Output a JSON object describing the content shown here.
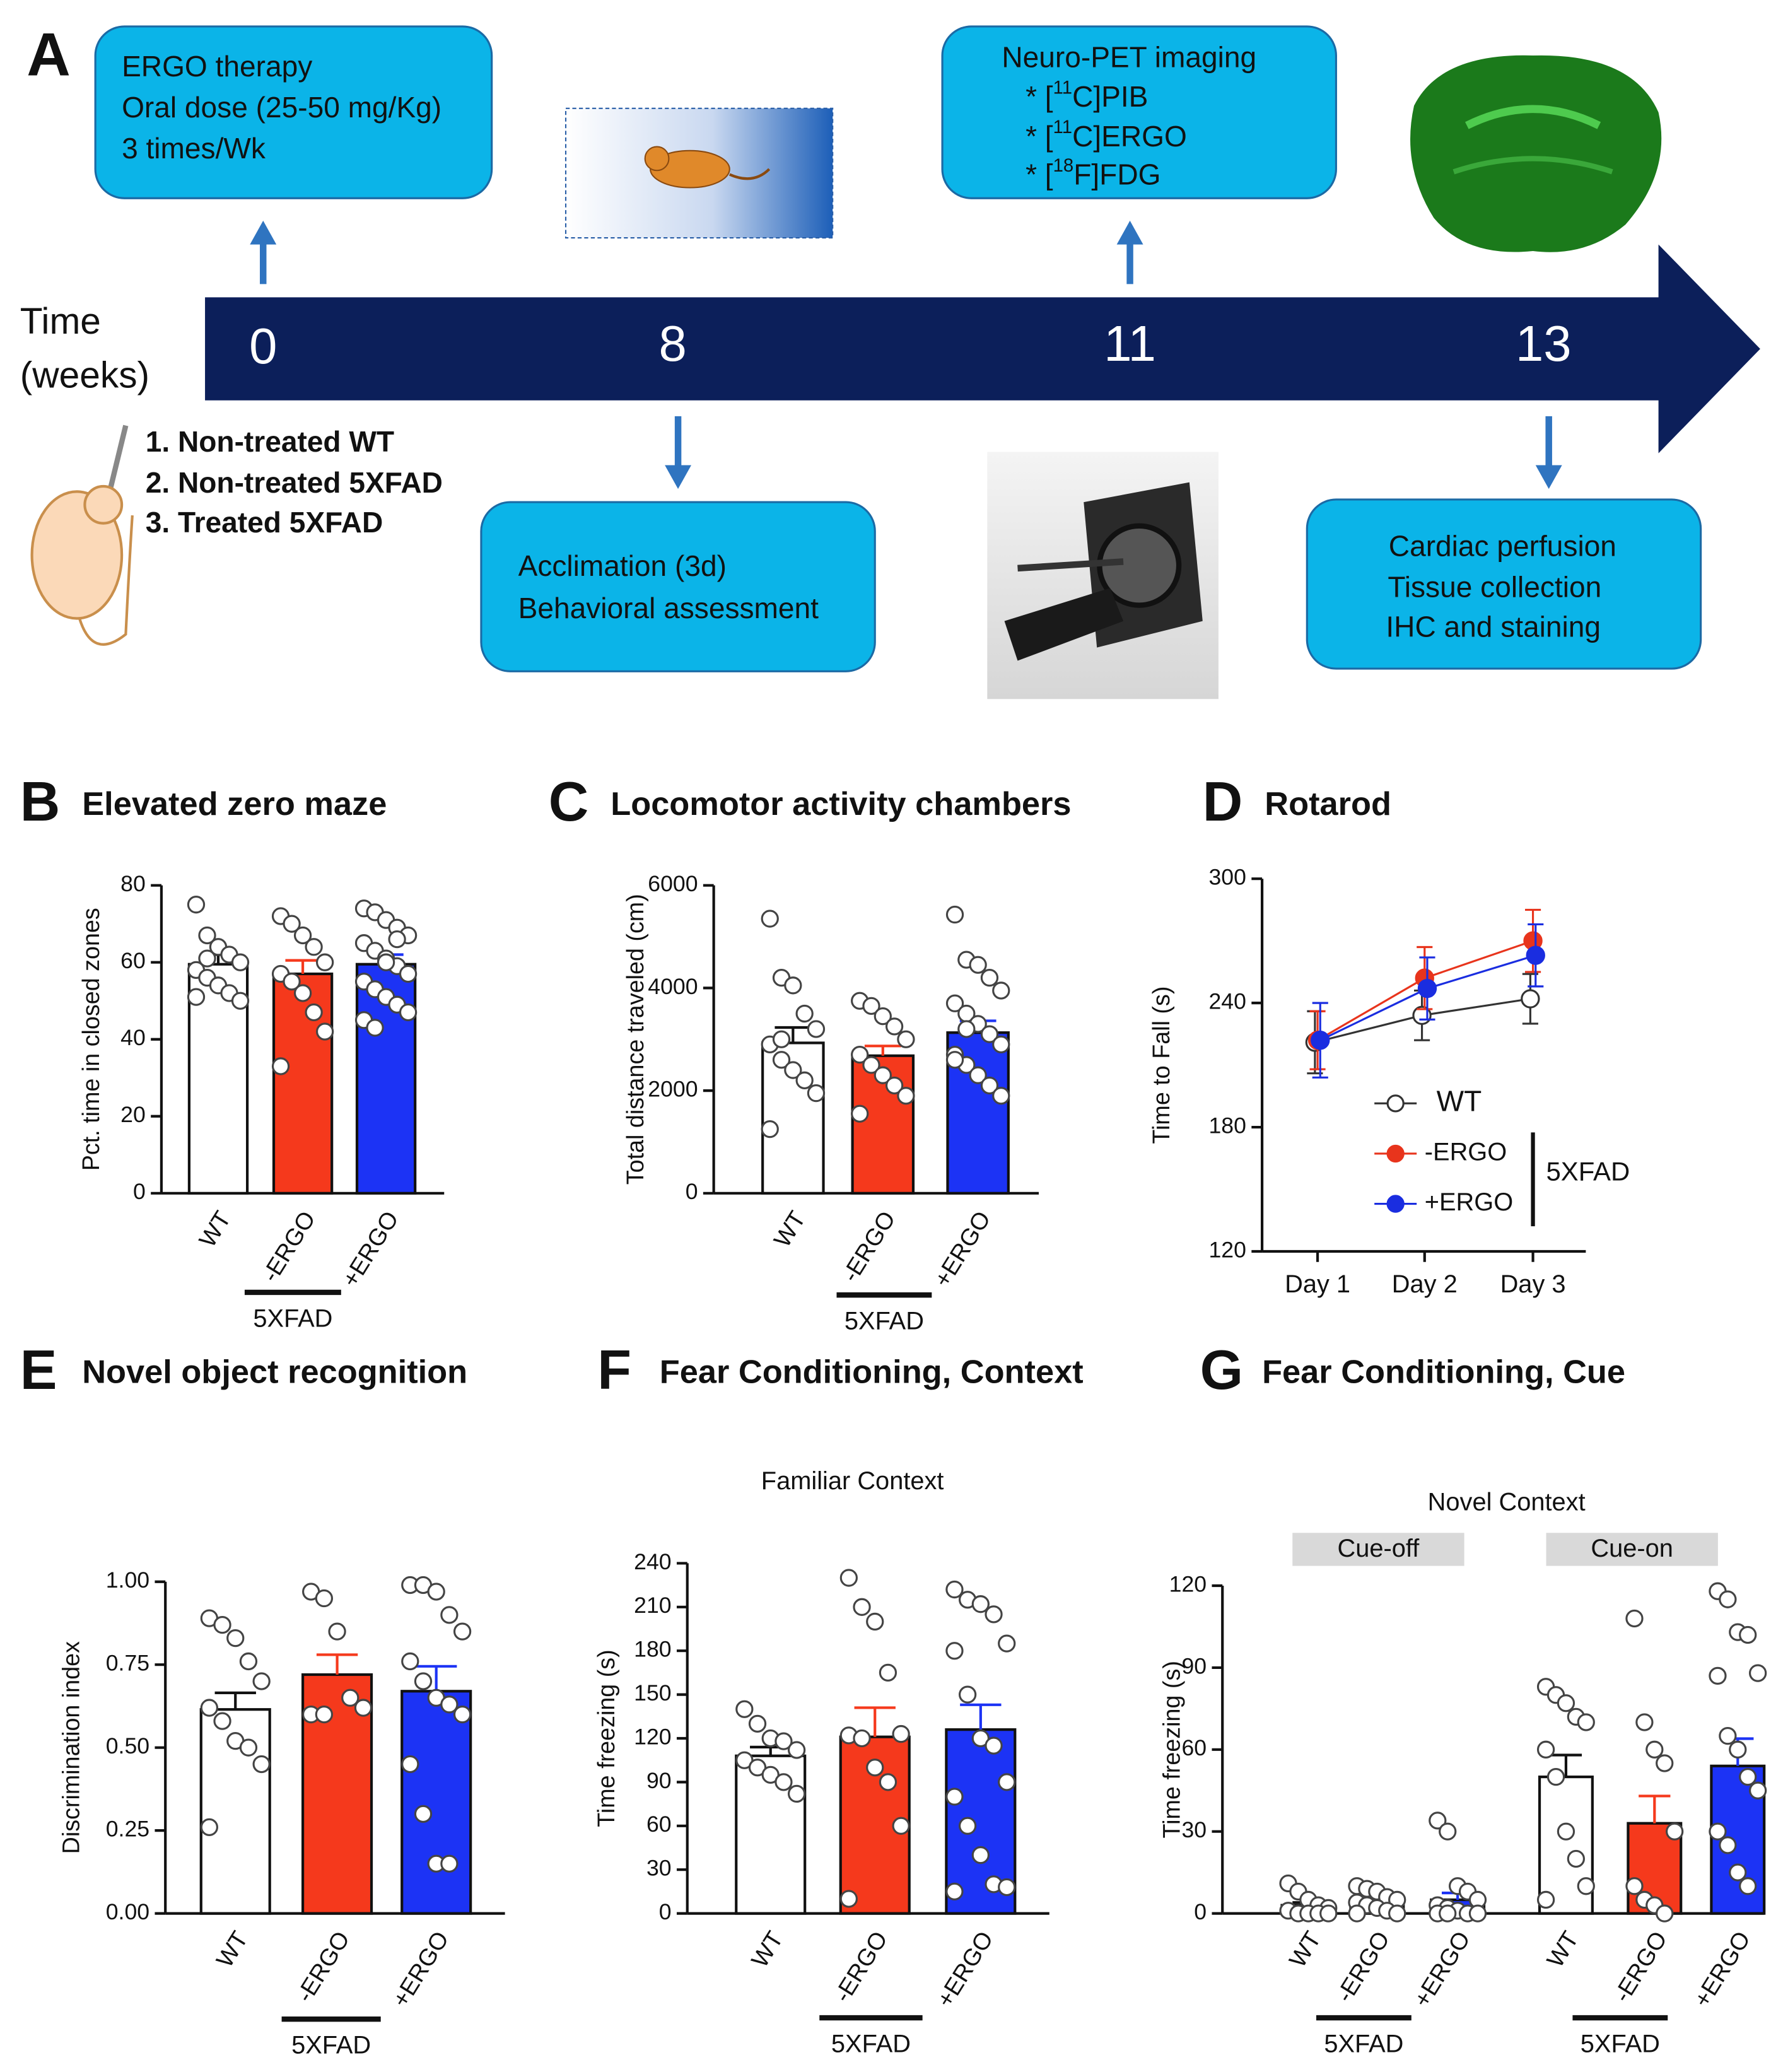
{
  "panel_a": {
    "panel": "A",
    "therapy_box": [
      "ERGO therapy",
      "Oral dose (25-50 mg/Kg)",
      "3 times/Wk"
    ],
    "pet_box": {
      "title": "Neuro-PET imaging",
      "tracers": [
        {
          "mark": "* [",
          "sup": "11",
          "rest": "C]PIB"
        },
        {
          "mark": "* [",
          "sup": "11",
          "rest": "C]ERGO"
        },
        {
          "mark": "* [",
          "sup": "18",
          "rest": "F]FDG"
        }
      ]
    },
    "timeline": {
      "label": [
        "Time",
        "(weeks)"
      ],
      "ticks": [
        0,
        8,
        11,
        13
      ]
    },
    "groups": [
      "1. Non-treated WT",
      "2. Non-treated 5XFAD",
      "3. Treated 5XFAD"
    ],
    "behavior_box": [
      "Acclimation (3d)",
      "Behavioral assessment"
    ],
    "tissue_box": [
      "Cardiac perfusion",
      "Tissue collection",
      "IHC and staining"
    ]
  },
  "chart_data": [
    {
      "type": "bar",
      "panel": "B",
      "title": "Elevated zero maze",
      "ylabel": "Pct. time in closed zones",
      "categories": [
        "WT",
        "-ERGO",
        "+ERGO"
      ],
      "group_label": "5XFAD",
      "colors": [
        "#ffffff",
        "#f5391c",
        "#1c33f5"
      ],
      "values": [
        59.5,
        57,
        59.5
      ],
      "errors": [
        2.5,
        3.5,
        2.5
      ],
      "points": [
        [
          75,
          67,
          64,
          62,
          60,
          58,
          56,
          54,
          52,
          50,
          51,
          61
        ],
        [
          72,
          70,
          67,
          64,
          60,
          57,
          55,
          52,
          47,
          42,
          33
        ],
        [
          74,
          73,
          71,
          69,
          67,
          65,
          63,
          61,
          59,
          57,
          55,
          53,
          51,
          49,
          47,
          45,
          43,
          60,
          66
        ]
      ],
      "ylim": [
        0,
        80
      ],
      "yticks": [
        0,
        20,
        40,
        60,
        80
      ]
    },
    {
      "type": "bar",
      "panel": "C",
      "title": "Locomotor activity chambers",
      "ylabel": "Total distance traveled (cm)",
      "categories": [
        "WT",
        "-ERGO",
        "+ERGO"
      ],
      "group_label": "5XFAD",
      "colors": [
        "#ffffff",
        "#f5391c",
        "#1c33f5"
      ],
      "values": [
        2930,
        2680,
        3130
      ],
      "errors": [
        300,
        190,
        230
      ],
      "points": [
        [
          5350,
          4200,
          4050,
          3500,
          3200,
          2900,
          2600,
          2400,
          2200,
          1950,
          1250,
          3000
        ],
        [
          3750,
          3650,
          3450,
          3250,
          3000,
          2700,
          2500,
          2300,
          2100,
          1900,
          1550
        ],
        [
          5430,
          4550,
          4450,
          4200,
          3950,
          3700,
          3500,
          3300,
          3100,
          2900,
          2700,
          2500,
          2300,
          2100,
          1900,
          2600,
          3200
        ]
      ],
      "ylim": [
        0,
        6000
      ],
      "yticks": [
        0,
        2000,
        4000,
        6000
      ]
    },
    {
      "type": "line",
      "panel": "D",
      "title": "Rotarod",
      "ylabel": "Time to Fall (s)",
      "categories": [
        "Day 1",
        "Day 2",
        "Day 3"
      ],
      "group_label": "5XFAD",
      "series": [
        {
          "name": "WT",
          "color": "#ffffff",
          "line_color": "#333333",
          "values": [
            221,
            234,
            242
          ],
          "errors": [
            15,
            12,
            12
          ]
        },
        {
          "name": "-ERGO",
          "color": "#e8341c",
          "line_color": "#e8341c",
          "values": [
            222,
            252,
            270
          ],
          "errors": [
            14,
            15,
            15
          ]
        },
        {
          "name": "+ERGO",
          "color": "#1a2de0",
          "line_color": "#1a2de0",
          "values": [
            222,
            247,
            263
          ],
          "errors": [
            18,
            15,
            15
          ]
        }
      ],
      "ylim": [
        120,
        300
      ],
      "yticks": [
        120,
        180,
        240,
        300
      ]
    },
    {
      "type": "bar",
      "panel": "E",
      "title": "Novel object recognition",
      "ylabel": "Discrimination index",
      "categories": [
        "WT",
        "-ERGO",
        "+ERGO"
      ],
      "group_label": "5XFAD",
      "colors": [
        "#ffffff",
        "#f5391c",
        "#1c33f5"
      ],
      "values": [
        0.615,
        0.72,
        0.67
      ],
      "errors": [
        0.05,
        0.06,
        0.075
      ],
      "points": [
        [
          0.89,
          0.87,
          0.83,
          0.76,
          0.7,
          0.62,
          0.58,
          0.52,
          0.5,
          0.45,
          0.26
        ],
        [
          0.97,
          0.95,
          0.85,
          0.65,
          0.62,
          0.6,
          0.6
        ],
        [
          0.99,
          0.99,
          0.97,
          0.9,
          0.85,
          0.76,
          0.7,
          0.65,
          0.63,
          0.6,
          0.45,
          0.3,
          0.15,
          0.15
        ]
      ],
      "ylim": [
        0,
        1
      ],
      "yticks": [
        {
          "value": 0,
          "label": "0.00"
        },
        {
          "value": 0.25,
          "label": "0.25"
        },
        {
          "value": 0.5,
          "label": "0.50"
        },
        {
          "value": 0.75,
          "label": "0.75"
        },
        {
          "value": 1,
          "label": "1.00"
        }
      ]
    },
    {
      "type": "bar",
      "panel": "F",
      "title": "Fear Conditioning, Context",
      "subtitle": "Familiar Context",
      "ylabel": "Time freezing (s)",
      "categories": [
        "WT",
        "-ERGO",
        "+ERGO"
      ],
      "group_label": "5XFAD",
      "colors": [
        "#ffffff",
        "#f5391c",
        "#1c33f5"
      ],
      "values": [
        108,
        121,
        126
      ],
      "errors": [
        6,
        20,
        17
      ],
      "points": [
        [
          140,
          130,
          120,
          118,
          112,
          105,
          100,
          95,
          90,
          82
        ],
        [
          230,
          210,
          200,
          165,
          123,
          122,
          120,
          100,
          90,
          60,
          10
        ],
        [
          222,
          215,
          212,
          205,
          185,
          180,
          150,
          120,
          115,
          90,
          80,
          60,
          40,
          20,
          18,
          15
        ]
      ],
      "ylim": [
        0,
        240
      ],
      "yticks": [
        0,
        30,
        60,
        90,
        120,
        150,
        180,
        210,
        240
      ]
    },
    {
      "type": "grouped_bar",
      "panel": "G",
      "title": "Fear Conditioning, Cue",
      "subtitle": "Novel Context",
      "ylabel": "Time freezing (s)",
      "categories": [
        "WT",
        "-ERGO",
        "+ERGO"
      ],
      "group_label": "5XFAD",
      "colors": [
        "#ffffff",
        "#f5391c",
        "#1c33f5"
      ],
      "groups": [
        {
          "name": "Cue-off",
          "values": [
            3,
            4,
            5
          ],
          "errors": [
            1,
            1,
            2.5
          ],
          "points": [
            [
              11,
              8,
              5,
              3,
              2,
              1,
              0,
              0,
              0,
              0
            ],
            [
              10,
              9,
              8,
              6,
              5,
              4,
              3,
              2,
              1,
              0,
              0
            ],
            [
              34,
              30,
              10,
              8,
              5,
              3,
              2,
              1,
              0,
              0,
              0,
              0
            ]
          ]
        },
        {
          "name": "Cue-on",
          "values": [
            50,
            33,
            54
          ],
          "errors": [
            8,
            10,
            10
          ],
          "points": [
            [
              83,
              80,
              77,
              72,
              70,
              60,
              50,
              30,
              20,
              10,
              5
            ],
            [
              108,
              70,
              60,
              55,
              30,
              10,
              5,
              3,
              0
            ],
            [
              118,
              115,
              103,
              102,
              88,
              87,
              65,
              60,
              50,
              45,
              30,
              25,
              15,
              10
            ]
          ]
        }
      ],
      "ylim": [
        0,
        120
      ],
      "yticks": [
        0,
        30,
        60,
        90,
        120
      ]
    }
  ]
}
